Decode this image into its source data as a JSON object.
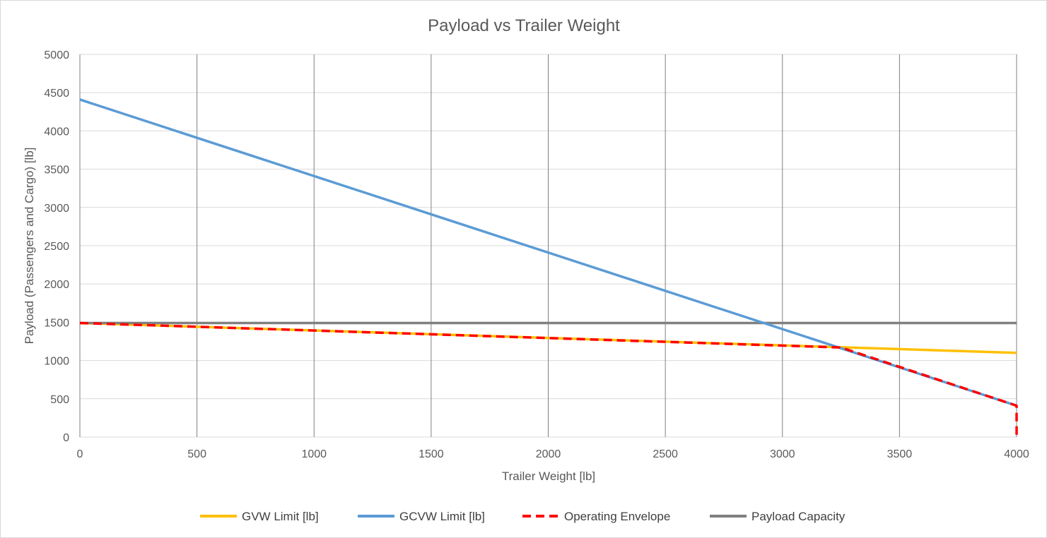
{
  "chart_data": {
    "type": "line",
    "title": "Payload vs Trailer Weight",
    "xlabel": "Trailer Weight [lb]",
    "ylabel": "Payload (Passengers and Cargo) [lb]",
    "xlim": [
      0,
      4000
    ],
    "ylim": [
      0,
      5000
    ],
    "x_ticks": [
      0,
      500,
      1000,
      1500,
      2000,
      2500,
      3000,
      3500,
      4000
    ],
    "y_ticks": [
      0,
      500,
      1000,
      1500,
      2000,
      2500,
      3000,
      3500,
      4000,
      4500,
      5000
    ],
    "grid": "on",
    "legend_position": "bottom",
    "series": [
      {
        "name": "GVW Limit [lb]",
        "color": "#ffc000",
        "style": "solid",
        "x": [
          0,
          4000
        ],
        "y": [
          1490,
          1100
        ]
      },
      {
        "name": "GCVW Limit [lb]",
        "color": "#5b9bd5",
        "style": "solid",
        "x": [
          0,
          4000
        ],
        "y": [
          4410,
          410
        ]
      },
      {
        "name": "Operating Envelope",
        "color": "#ff0000",
        "style": "dashed",
        "x": [
          0,
          3250,
          4000,
          4000
        ],
        "y": [
          1490,
          1170,
          410,
          0
        ]
      },
      {
        "name": "Payload Capacity",
        "color": "#808080",
        "style": "solid",
        "x": [
          0,
          4000
        ],
        "y": [
          1490,
          1490
        ]
      }
    ]
  }
}
